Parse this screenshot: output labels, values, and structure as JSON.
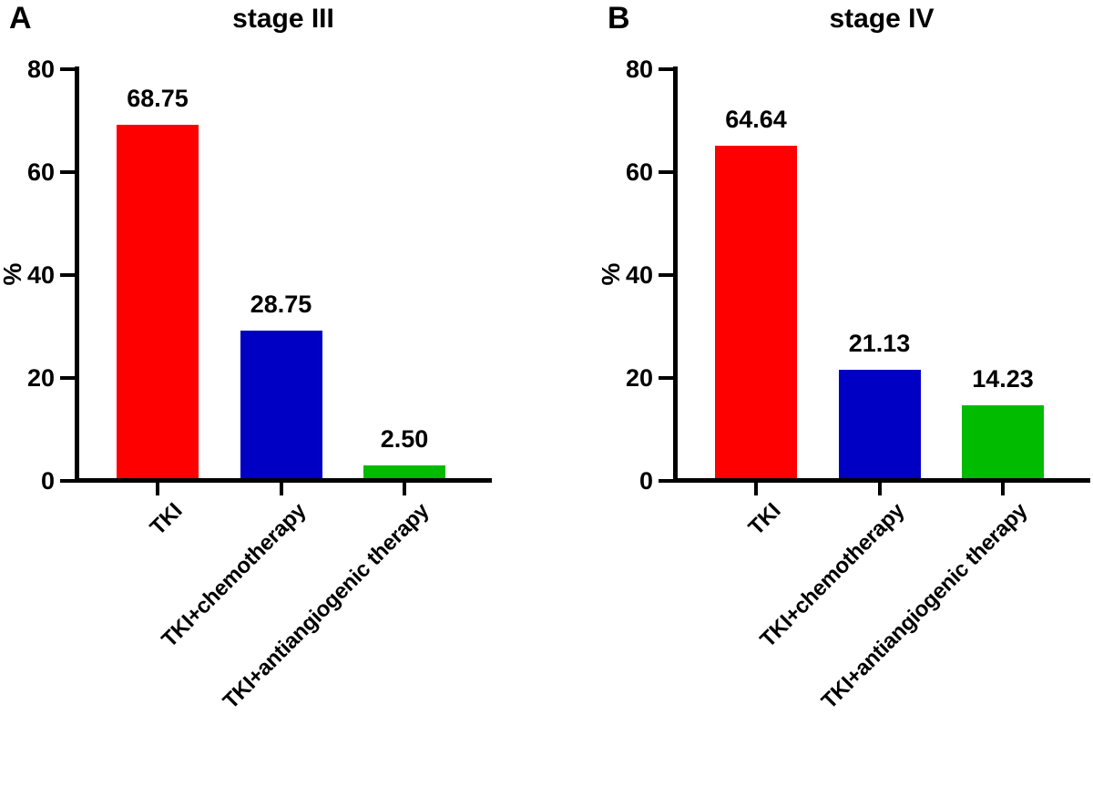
{
  "figure": {
    "background": "#FFFFFF",
    "text_color": "#000000",
    "axis_color": "#000000"
  },
  "chart_data": [
    {
      "type": "bar",
      "panel_label": "A",
      "title": "stage III",
      "xlabel": "",
      "ylabel": "%",
      "ylim": [
        0,
        80
      ],
      "yticks": [
        0,
        20,
        40,
        60,
        80
      ],
      "grid": false,
      "legend": "none",
      "categories": [
        "TKI",
        "TKI+chemotherapy",
        "TKI+antiangiogenic therapy"
      ],
      "values": [
        68.75,
        28.75,
        2.5
      ],
      "value_labels": [
        "68.75",
        "28.75",
        "2.50"
      ],
      "bar_colors": [
        "#FF0000",
        "#0000C4",
        "#00BB00"
      ]
    },
    {
      "type": "bar",
      "panel_label": "B",
      "title": "stage IV",
      "xlabel": "",
      "ylabel": "%",
      "ylim": [
        0,
        80
      ],
      "yticks": [
        0,
        20,
        40,
        60,
        80
      ],
      "grid": false,
      "legend": "none",
      "categories": [
        "TKI",
        "TKI+chemotherapy",
        "TKI+antiangiogenic therapy"
      ],
      "values": [
        64.64,
        21.13,
        14.23
      ],
      "value_labels": [
        "64.64",
        "21.13",
        "14.23"
      ],
      "bar_colors": [
        "#FF0000",
        "#0000C4",
        "#00BB00"
      ]
    }
  ]
}
